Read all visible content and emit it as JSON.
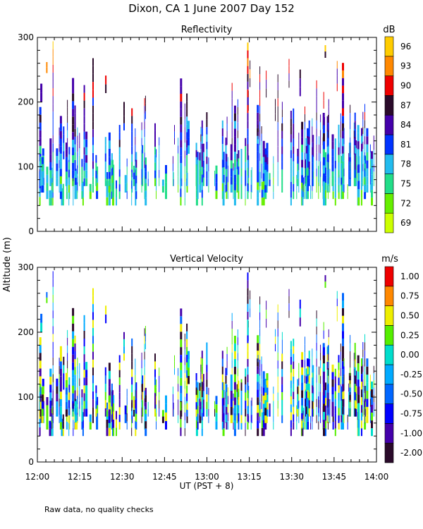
{
  "title": "Dixon, CA  1 June 2007  Day 152",
  "ylabel_shared": "Altitude (m)",
  "xlabel": "UT  (PST + 8)",
  "footnote": "Raw data, no quality checks",
  "chart_data": [
    {
      "type": "heatmap",
      "title": "Reflectivity",
      "xlabel": "UT  (PST + 8)",
      "ylabel": "Altitude (m)",
      "x_range_hours": [
        12.0,
        14.0
      ],
      "x_ticks": [
        "12:00",
        "12:15",
        "12:30",
        "12:45",
        "13:00",
        "13:15",
        "13:30",
        "13:45",
        "14:00"
      ],
      "y_range": [
        0,
        300
      ],
      "y_ticks": [
        "0",
        "100",
        "200",
        "300"
      ],
      "colorbar_unit": "dB",
      "colorbar_labels": [
        "69",
        "72",
        "75",
        "78",
        "81",
        "84",
        "87",
        "90",
        "93",
        "96"
      ],
      "colorbar_colors": [
        "#ccff00",
        "#66ee00",
        "#22dd88",
        "#22bbee",
        "#0033ff",
        "#4400aa",
        "#2a0a2a",
        "#ee0000",
        "#ff8800",
        "#ffcc00"
      ],
      "description": "Sparse vertical streaks of echo, base near 40 m, mostly 69-81 dB below 100 m and 81-90 dB aloft, denser activity after 13:30 UT"
    },
    {
      "type": "heatmap",
      "title": "Vertical Velocity",
      "xlabel": "UT  (PST + 8)",
      "ylabel": "Altitude (m)",
      "x_range_hours": [
        12.0,
        14.0
      ],
      "x_ticks": [
        "12:00",
        "12:15",
        "12:30",
        "12:45",
        "13:00",
        "13:15",
        "13:30",
        "13:45",
        "14:00"
      ],
      "y_range": [
        0,
        300
      ],
      "y_ticks": [
        "0",
        "100",
        "200",
        "300"
      ],
      "colorbar_unit": "m/s",
      "colorbar_labels": [
        "-2.00",
        "-1.00",
        "-0.75",
        "-0.50",
        "-0.25",
        "0.00",
        "0.25",
        "0.50",
        "0.75",
        "1.00"
      ],
      "colorbar_colors": [
        "#2a0a2a",
        "#4400aa",
        "#0000ff",
        "#0066ff",
        "#00aaff",
        "#00ddcc",
        "#55ee00",
        "#eeee00",
        "#ff8800",
        "#ee0000"
      ],
      "description": "Same echo streaks colored by vertical velocity, mostly -1.00 to 0.50 m/s, with mixed up/down motion after 13:30 UT"
    }
  ]
}
